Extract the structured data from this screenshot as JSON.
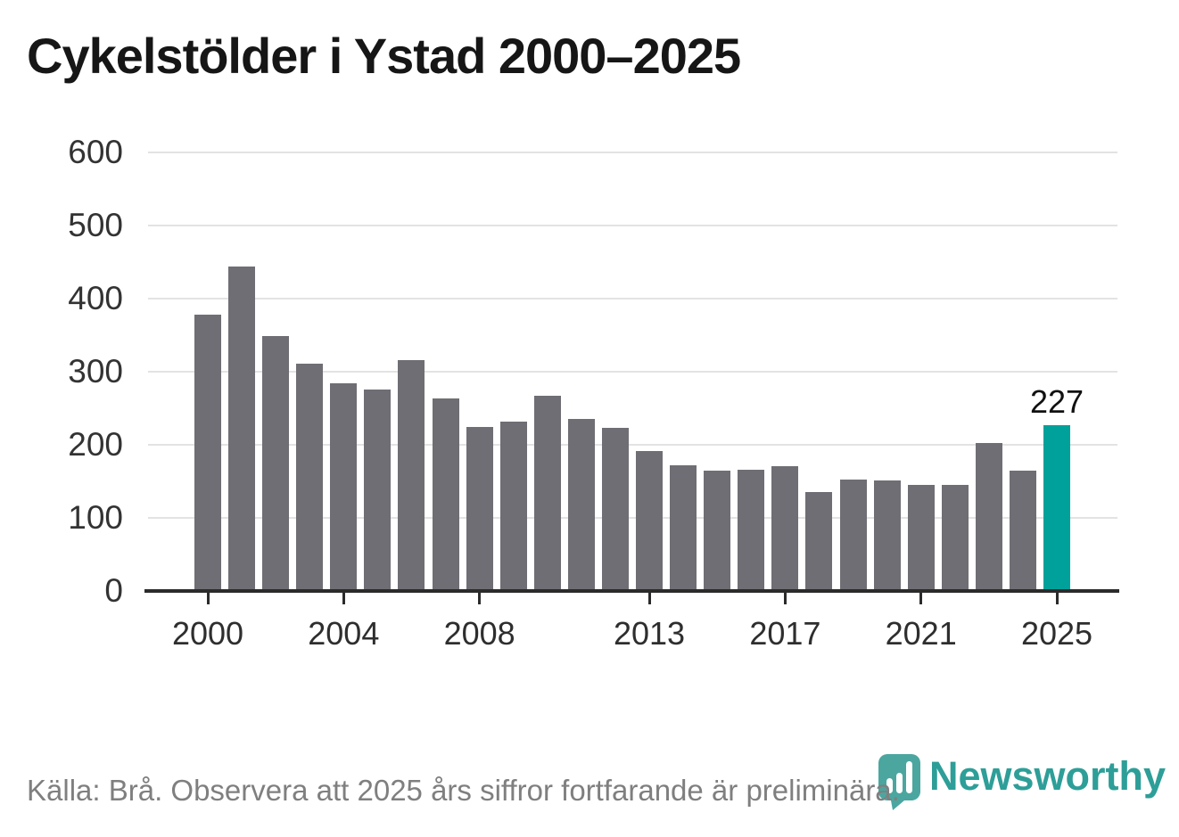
{
  "title": "Cykelstölder i Ystad 2000–2025",
  "y_axis": {
    "tick_labels": [
      "0",
      "100",
      "200",
      "300",
      "400",
      "500",
      "600"
    ]
  },
  "x_axis": {
    "tick_labels": [
      "2000",
      "2004",
      "2008",
      "2013",
      "2017",
      "2021",
      "2025"
    ]
  },
  "annotation": {
    "highlight_value_label": "227"
  },
  "footer": {
    "source_note": "Källa: Brå. Observera att 2025 års siffror fortfarande är preliminära."
  },
  "branding": {
    "name": "Newsworthy",
    "icon": "newsworthy-pin-chart-icon"
  },
  "colors": {
    "bar": "#6f6e74",
    "highlight": "#00a19a",
    "grid": "#e3e3e3",
    "axis": "#2b2b2b",
    "title": "#161616",
    "tick_label": "#333333",
    "footer_text": "#7f7f7f",
    "logo_pin": "#4ba6a0",
    "logo_text": "#2e9e98"
  },
  "chart_data": {
    "type": "bar",
    "title": "Cykelstölder i Ystad 2000–2025",
    "x": [
      2000,
      2001,
      2002,
      2003,
      2004,
      2005,
      2006,
      2007,
      2008,
      2009,
      2010,
      2011,
      2012,
      2013,
      2014,
      2015,
      2016,
      2017,
      2018,
      2019,
      2020,
      2021,
      2022,
      2023,
      2024,
      2025
    ],
    "values": [
      378,
      444,
      349,
      311,
      284,
      276,
      316,
      263,
      224,
      232,
      267,
      235,
      223,
      191,
      172,
      165,
      166,
      171,
      135,
      152,
      151,
      145,
      145,
      202,
      165,
      227
    ],
    "highlight_index": 25,
    "highlight_label": "227",
    "x_tick_labels": [
      "2000",
      "2004",
      "2008",
      "2013",
      "2017",
      "2021",
      "2025"
    ],
    "y_ticks": [
      0,
      100,
      200,
      300,
      400,
      500,
      600
    ],
    "ylim": [
      0,
      600
    ],
    "xlabel": "",
    "ylabel": "",
    "grid": "horizontal",
    "legend": "none",
    "source": "Källa: Brå. Observera att 2025 års siffror fortfarande är preliminära."
  }
}
